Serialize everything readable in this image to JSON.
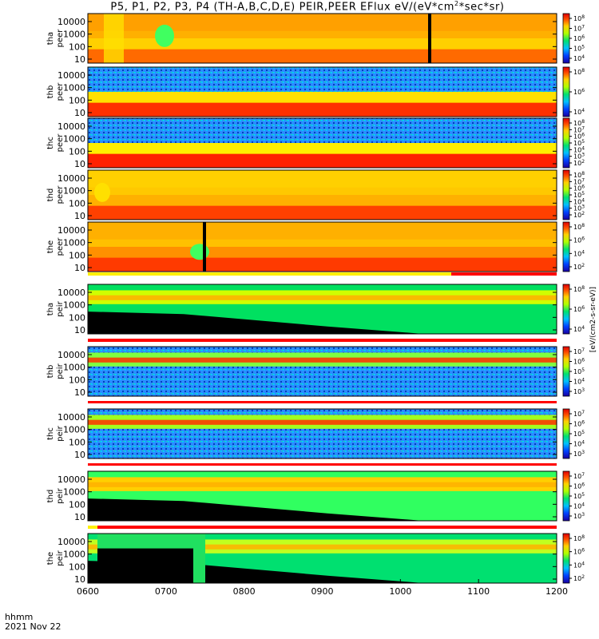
{
  "title_prefix": "P5, P1, P2, P3, P4 (TH-A,B,C,D,E) PEIR,PEER EFlux eV/(eV*cm",
  "title_sup": "2",
  "title_suffix": "*sec*sr)",
  "time_label": "hhmm",
  "date_label": "2021 Nov 22",
  "colorbar_label_right": "[eV/(cm2-s-sr-eV)]",
  "chart_data": {
    "type": "heatmap",
    "x_ticks": [
      "0600",
      "0700",
      "0800",
      "0900",
      "1000",
      "1100",
      "1200"
    ],
    "x_range": [
      "0600",
      "1200"
    ],
    "y_scale": "log",
    "y_ticks": [
      "10",
      "100",
      "1000",
      "10000"
    ],
    "panels": [
      {
        "ylabel_top": "tha",
        "ylabel_bottom": "peer",
        "cb_ticks": [
          "10^8",
          "10^7",
          "10^6",
          "10^5",
          "10^4"
        ]
      },
      {
        "ylabel_top": "thb",
        "ylabel_bottom": "peer",
        "cb_ticks": [
          "10^8",
          "10^6",
          "10^4"
        ]
      },
      {
        "ylabel_top": "thc",
        "ylabel_bottom": "peer",
        "cb_ticks": [
          "10^8",
          "10^7",
          "10^6",
          "10^5",
          "10^4",
          "10^3",
          "10^2"
        ]
      },
      {
        "ylabel_top": "thd",
        "ylabel_bottom": "peer",
        "cb_ticks": [
          "10^8",
          "10^7",
          "10^6",
          "10^5",
          "10^4",
          "10^3",
          "10^2"
        ]
      },
      {
        "ylabel_top": "the",
        "ylabel_bottom": "peer",
        "cb_ticks": [
          "10^8",
          "10^6",
          "10^4",
          "10^2"
        ]
      },
      {
        "ylabel_top": "tha",
        "ylabel_bottom": "peir",
        "cb_ticks": [
          "10^8",
          "10^6",
          "10^4"
        ]
      },
      {
        "ylabel_top": "thb",
        "ylabel_bottom": "peir",
        "cb_ticks": [
          "10^7",
          "10^6",
          "10^5",
          "10^4",
          "10^3"
        ]
      },
      {
        "ylabel_top": "thc",
        "ylabel_bottom": "peir",
        "cb_ticks": [
          "10^7",
          "10^6",
          "10^5",
          "10^4",
          "10^3"
        ]
      },
      {
        "ylabel_top": "thd",
        "ylabel_bottom": "peir",
        "cb_ticks": [
          "10^7",
          "10^6",
          "10^5",
          "10^4",
          "10^3"
        ]
      },
      {
        "ylabel_top": "the",
        "ylabel_bottom": "peir",
        "cb_ticks": [
          "10^8",
          "10^6",
          "10^4",
          "10^2"
        ]
      }
    ]
  }
}
